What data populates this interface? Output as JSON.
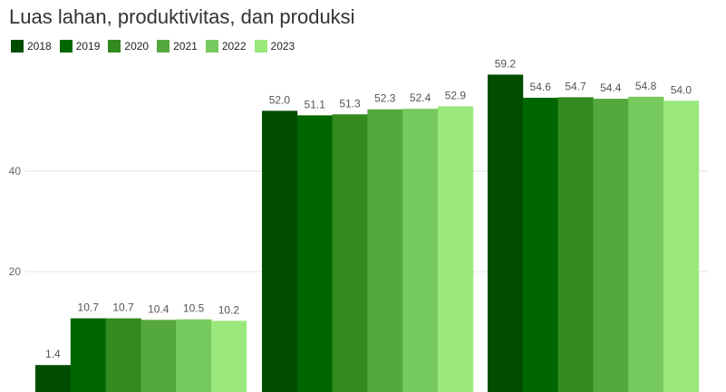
{
  "chart_data": {
    "type": "bar",
    "title": "Luas lahan, produktivitas, dan produksi",
    "xlabel": "",
    "ylabel": "",
    "ylim": [
      0,
      60
    ],
    "yticks": [
      20,
      40
    ],
    "grid": true,
    "legend_position": "top-left",
    "groups": [
      {
        "values": [
          1.4,
          10.7,
          10.7,
          10.4,
          10.5,
          10.2
        ]
      },
      {
        "values": [
          52.0,
          51.1,
          51.3,
          52.3,
          52.4,
          52.9
        ]
      },
      {
        "values": [
          59.2,
          54.6,
          54.7,
          54.4,
          54.8,
          54.0
        ]
      }
    ],
    "series": [
      {
        "name": "2018",
        "color": "#004d00"
      },
      {
        "name": "2019",
        "color": "#006600"
      },
      {
        "name": "2020",
        "color": "#338a1f"
      },
      {
        "name": "2021",
        "color": "#55a83e"
      },
      {
        "name": "2022",
        "color": "#76c95c"
      },
      {
        "name": "2023",
        "color": "#9ae87c"
      }
    ]
  }
}
